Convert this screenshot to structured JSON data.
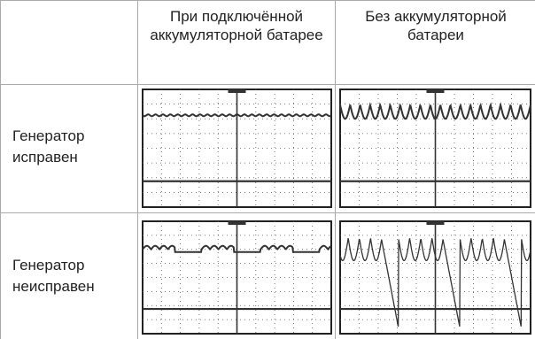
{
  "table": {
    "columns": [
      "При подключённой аккумуляторной батарее",
      "Без аккумуляторной батареи"
    ],
    "rows": [
      "Генератор исправен",
      "Генератор неисправен"
    ]
  }
}
